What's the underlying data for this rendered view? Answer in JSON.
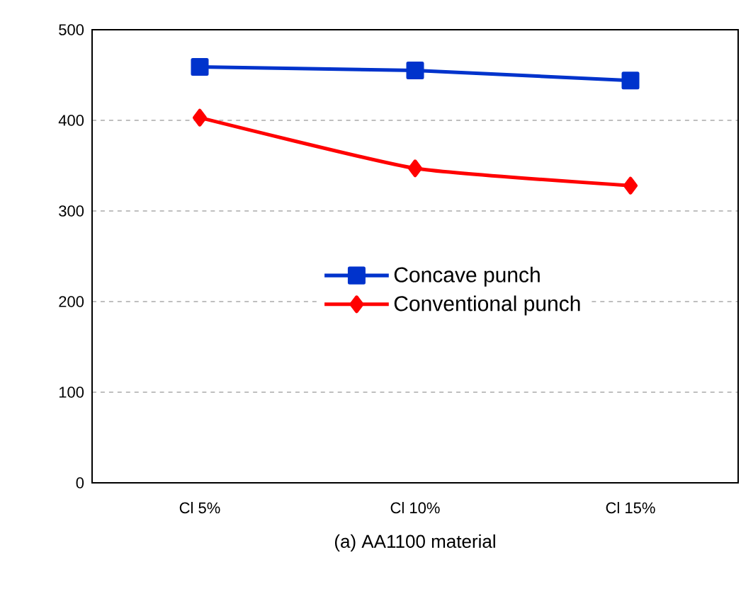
{
  "chart_data": {
    "type": "line",
    "xlabel": "(a) AA1100 material",
    "categories": [
      "Cl 5%",
      "Cl 10%",
      "Cl 15%"
    ],
    "series": [
      {
        "name": "Concave punch",
        "color": "#0033cc",
        "values": [
          459,
          455,
          444
        ],
        "marker": "square"
      },
      {
        "name": "Conventional punch",
        "color": "#ff0000",
        "values": [
          403,
          347,
          328
        ],
        "marker": "diamond"
      }
    ],
    "ylim": [
      0,
      500
    ],
    "yticks": [
      0,
      100,
      200,
      300,
      400,
      500
    ],
    "grid": "y",
    "legend": "right"
  }
}
